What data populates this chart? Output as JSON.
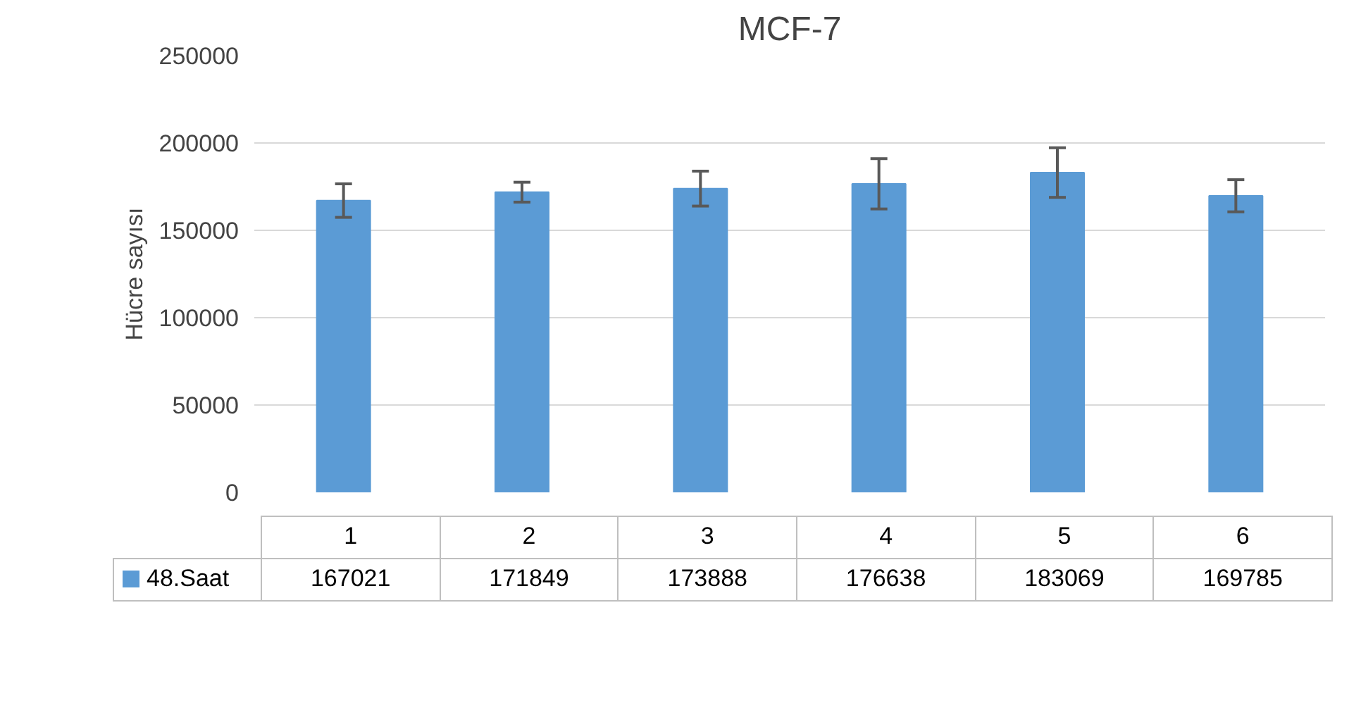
{
  "chart_data": {
    "type": "bar",
    "title": "MCF-7",
    "ylabel": "Hücre sayısı",
    "categories": [
      "1",
      "2",
      "3",
      "4",
      "5",
      "6"
    ],
    "series": [
      {
        "name": "48.Saat",
        "color": "#5b9bd5",
        "values": [
          167021,
          171849,
          173888,
          176638,
          183069,
          169785
        ],
        "errors": [
          9600,
          5700,
          10000,
          14400,
          14200,
          9200
        ]
      }
    ],
    "ylim": [
      0,
      250000
    ],
    "yticks": [
      0,
      50000,
      100000,
      150000,
      200000,
      250000
    ],
    "grid": "y",
    "legend": "bottom",
    "data_labels": true
  }
}
